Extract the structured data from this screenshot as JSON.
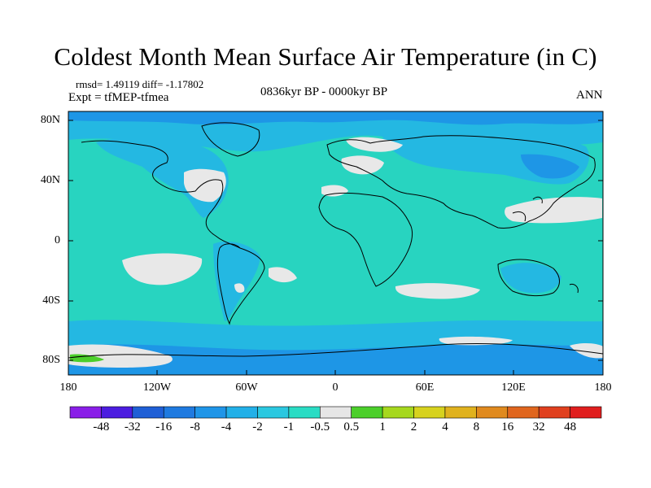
{
  "title": "Coldest Month Mean Surface Air Temperature (in C)",
  "stats": "rmsd= 1.49119 diff= -1.17802",
  "expt": "Expt = tfMEP-tfmea",
  "period": "0836kyr BP - 0000kyr BP",
  "season": "ANN",
  "lat_labels": [
    "80N",
    "40N",
    "0",
    "40S",
    "80S"
  ],
  "lon_labels": [
    "180",
    "120W",
    "60W",
    "0",
    "60E",
    "120E",
    "180"
  ],
  "colorbar": {
    "labels": [
      "-48",
      "-32",
      "-16",
      "-8",
      "-4",
      "-2",
      "-1",
      "-0.5",
      "0.5",
      "1",
      "2",
      "4",
      "8",
      "16",
      "32",
      "48"
    ],
    "colors": [
      "#8a1ee8",
      "#4c1de0",
      "#1f5fd6",
      "#1f7ae0",
      "#1f95e8",
      "#22b0e8",
      "#2bc8e0",
      "#2adcc4",
      "#e6e6e6",
      "#4ccf2b",
      "#a6d81e",
      "#d7d21e",
      "#e0b21e",
      "#e08a1e",
      "#e0661e",
      "#e0401e",
      "#e01e1e"
    ]
  },
  "colors": {
    "ocean_base": "#28d4c0",
    "cool_band": "#24b8e2",
    "cold_band": "#1e96e6",
    "near_zero": "#e8e8e8",
    "coast": "#000000"
  }
}
